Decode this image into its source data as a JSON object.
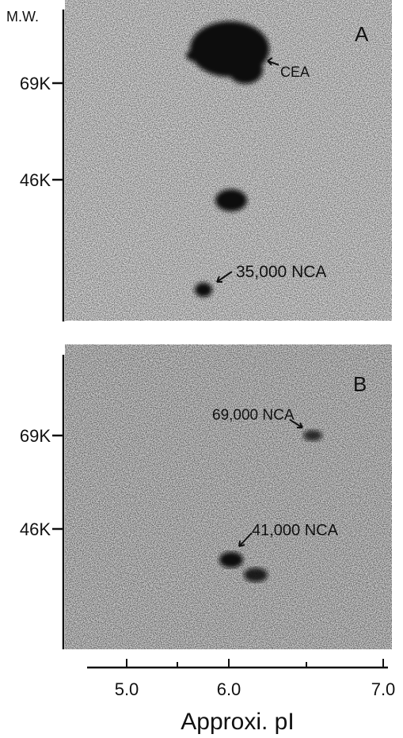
{
  "y_axis_title": "M.W.",
  "panels": [
    {
      "label": "A",
      "y_ticks": [
        "69K",
        "46K"
      ],
      "annotations": [
        "CEA",
        "35,000 NCA"
      ]
    },
    {
      "label": "B",
      "y_ticks": [
        "69K",
        "46K"
      ],
      "annotations": [
        "69,000 NCA",
        "41,000 NCA"
      ]
    }
  ],
  "x_axis": {
    "ticks": [
      "5.0",
      "6.0",
      "7.0"
    ],
    "title": "Approxi. pI"
  }
}
